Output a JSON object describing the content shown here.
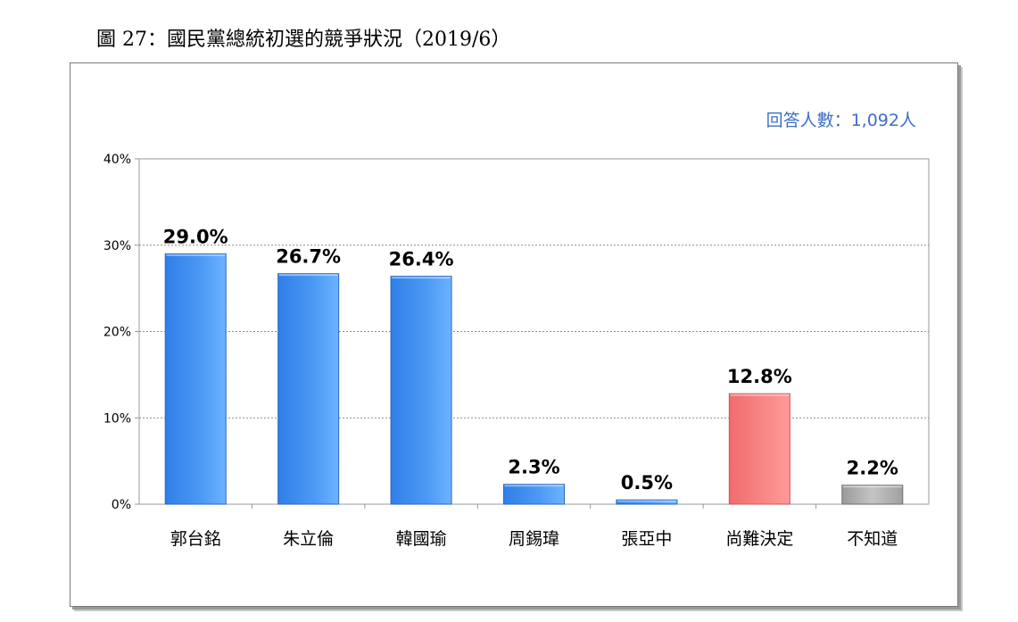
{
  "figure_title": "圖 27：國民黨總統初選的競爭狀況（2019/6）",
  "respondents_label": "回答人數：1,092人",
  "chart_data": {
    "type": "bar",
    "title": "",
    "xlabel": "",
    "ylabel": "",
    "ylim": [
      0,
      40
    ],
    "yticks": [
      0,
      10,
      20,
      30,
      40
    ],
    "ytick_labels": [
      "0%",
      "10%",
      "20%",
      "30%",
      "40%"
    ],
    "grid": true,
    "categories": [
      "郭台銘",
      "朱立倫",
      "韓國瑜",
      "周錫瑋",
      "張亞中",
      "尚難決定",
      "不知道"
    ],
    "values": [
      29.0,
      26.7,
      26.4,
      2.3,
      0.5,
      12.8,
      2.2
    ],
    "data_labels": [
      "29.0%",
      "26.7%",
      "26.4%",
      "2.3%",
      "0.5%",
      "12.8%",
      "2.2%"
    ],
    "bar_colors": [
      "#3f8fef",
      "#3f8fef",
      "#3f8fef",
      "#3f8fef",
      "#3f8fef",
      "#f47f7f",
      "#a9a9a9"
    ]
  }
}
